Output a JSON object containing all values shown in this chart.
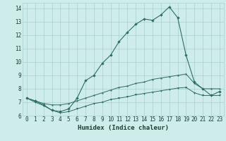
{
  "xlabel": "Humidex (Indice chaleur)",
  "bg_color": "#ceecea",
  "grid_color": "#aaced0",
  "line_color": "#2e6e60",
  "xlim": [
    -0.5,
    23.5
  ],
  "ylim": [
    6,
    14.4
  ],
  "x_ticks": [
    0,
    1,
    2,
    3,
    4,
    5,
    6,
    7,
    8,
    9,
    10,
    11,
    12,
    13,
    14,
    15,
    16,
    17,
    18,
    19,
    20,
    21,
    22,
    23
  ],
  "y_ticks": [
    6,
    7,
    8,
    9,
    10,
    11,
    12,
    13,
    14
  ],
  "series_main": {
    "x": [
      0,
      1,
      2,
      3,
      4,
      5,
      6,
      7,
      8,
      9,
      10,
      11,
      12,
      13,
      14,
      15,
      16,
      17,
      18,
      19,
      20,
      21,
      22,
      23
    ],
    "y": [
      7.3,
      7.1,
      6.8,
      6.4,
      6.3,
      6.5,
      7.3,
      8.6,
      9.0,
      9.9,
      10.5,
      11.5,
      12.2,
      12.8,
      13.2,
      13.1,
      13.5,
      14.1,
      13.3,
      10.5,
      8.5,
      8.0,
      7.5,
      7.8
    ]
  },
  "series_upper": {
    "x": [
      0,
      1,
      2,
      3,
      4,
      5,
      6,
      7,
      8,
      9,
      10,
      11,
      12,
      13,
      14,
      15,
      16,
      17,
      18,
      19,
      20,
      21,
      22,
      23
    ],
    "y": [
      7.3,
      7.1,
      6.9,
      6.8,
      6.8,
      6.9,
      7.1,
      7.3,
      7.5,
      7.7,
      7.9,
      8.1,
      8.2,
      8.4,
      8.5,
      8.7,
      8.8,
      8.9,
      9.0,
      9.1,
      8.4,
      8.0,
      8.0,
      8.0
    ]
  },
  "series_lower": {
    "x": [
      0,
      1,
      2,
      3,
      4,
      5,
      6,
      7,
      8,
      9,
      10,
      11,
      12,
      13,
      14,
      15,
      16,
      17,
      18,
      19,
      20,
      21,
      22,
      23
    ],
    "y": [
      7.3,
      7.0,
      6.75,
      6.4,
      6.2,
      6.3,
      6.5,
      6.7,
      6.9,
      7.0,
      7.2,
      7.3,
      7.4,
      7.55,
      7.65,
      7.75,
      7.85,
      7.95,
      8.05,
      8.1,
      7.7,
      7.5,
      7.5,
      7.5
    ]
  }
}
